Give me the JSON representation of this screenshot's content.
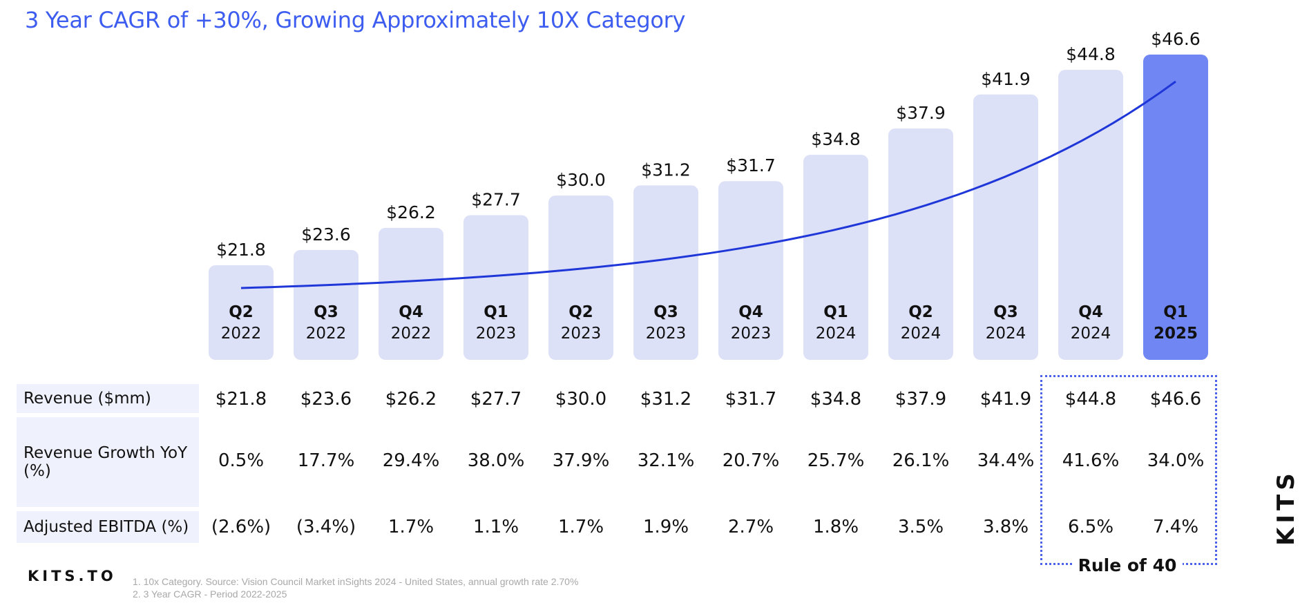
{
  "title": "3 Year CAGR of +30%, Growing Approximately 10X Category",
  "chart_data": {
    "type": "bar",
    "title": "3 Year CAGR of +30%, Growing Approximately 10X Category",
    "categories": [
      {
        "quarter": "Q2",
        "year": "2022"
      },
      {
        "quarter": "Q3",
        "year": "2022"
      },
      {
        "quarter": "Q4",
        "year": "2022"
      },
      {
        "quarter": "Q1",
        "year": "2023"
      },
      {
        "quarter": "Q2",
        "year": "2023"
      },
      {
        "quarter": "Q3",
        "year": "2023"
      },
      {
        "quarter": "Q4",
        "year": "2023"
      },
      {
        "quarter": "Q1",
        "year": "2024"
      },
      {
        "quarter": "Q2",
        "year": "2024"
      },
      {
        "quarter": "Q3",
        "year": "2024"
      },
      {
        "quarter": "Q4",
        "year": "2024"
      },
      {
        "quarter": "Q1",
        "year": "2025"
      }
    ],
    "values": [
      21.8,
      23.6,
      26.2,
      27.7,
      30.0,
      31.2,
      31.7,
      34.8,
      37.9,
      41.9,
      44.8,
      46.6
    ],
    "value_labels": [
      "$21.8",
      "$23.6",
      "$26.2",
      "$27.7",
      "$30.0",
      "$31.2",
      "$31.7",
      "$34.8",
      "$37.9",
      "$41.9",
      "$44.8",
      "$46.6"
    ],
    "highlight_index": 11,
    "trendline": "exponential",
    "ylabel": "",
    "xlabel": "",
    "colors": {
      "bar": "#dde1f8",
      "highlight_bar": "#7086f3",
      "trend": "#1f37d8",
      "title": "#3d5cf0"
    }
  },
  "table": {
    "rows": [
      {
        "label": "Revenue ($mm)",
        "values": [
          "$21.8",
          "$23.6",
          "$26.2",
          "$27.7",
          "$30.0",
          "$31.2",
          "$31.7",
          "$34.8",
          "$37.9",
          "$41.9",
          "$44.8",
          "$46.6"
        ]
      },
      {
        "label": "Revenue Growth YoY (%)",
        "values": [
          "0.5%",
          "17.7%",
          "29.4%",
          "38.0%",
          "37.9%",
          "32.1%",
          "20.7%",
          "25.7%",
          "26.1%",
          "34.4%",
          "41.6%",
          "34.0%"
        ]
      },
      {
        "label": "Adjusted EBITDA (%)",
        "values": [
          "(2.6%)",
          "(3.4%)",
          "1.7%",
          "1.1%",
          "1.7%",
          "1.9%",
          "2.7%",
          "1.8%",
          "3.5%",
          "3.8%",
          "6.5%",
          "7.4%"
        ]
      }
    ],
    "rule_label": "Rule of 40"
  },
  "brand": "KITS.TO",
  "side_logo": "KITS",
  "footnotes": [
    "1. 10x Category. Source: Vision Council Market inSights 2024 - United States, annual growth rate 2.70%",
    "2. 3 Year CAGR - Period 2022-2025"
  ]
}
